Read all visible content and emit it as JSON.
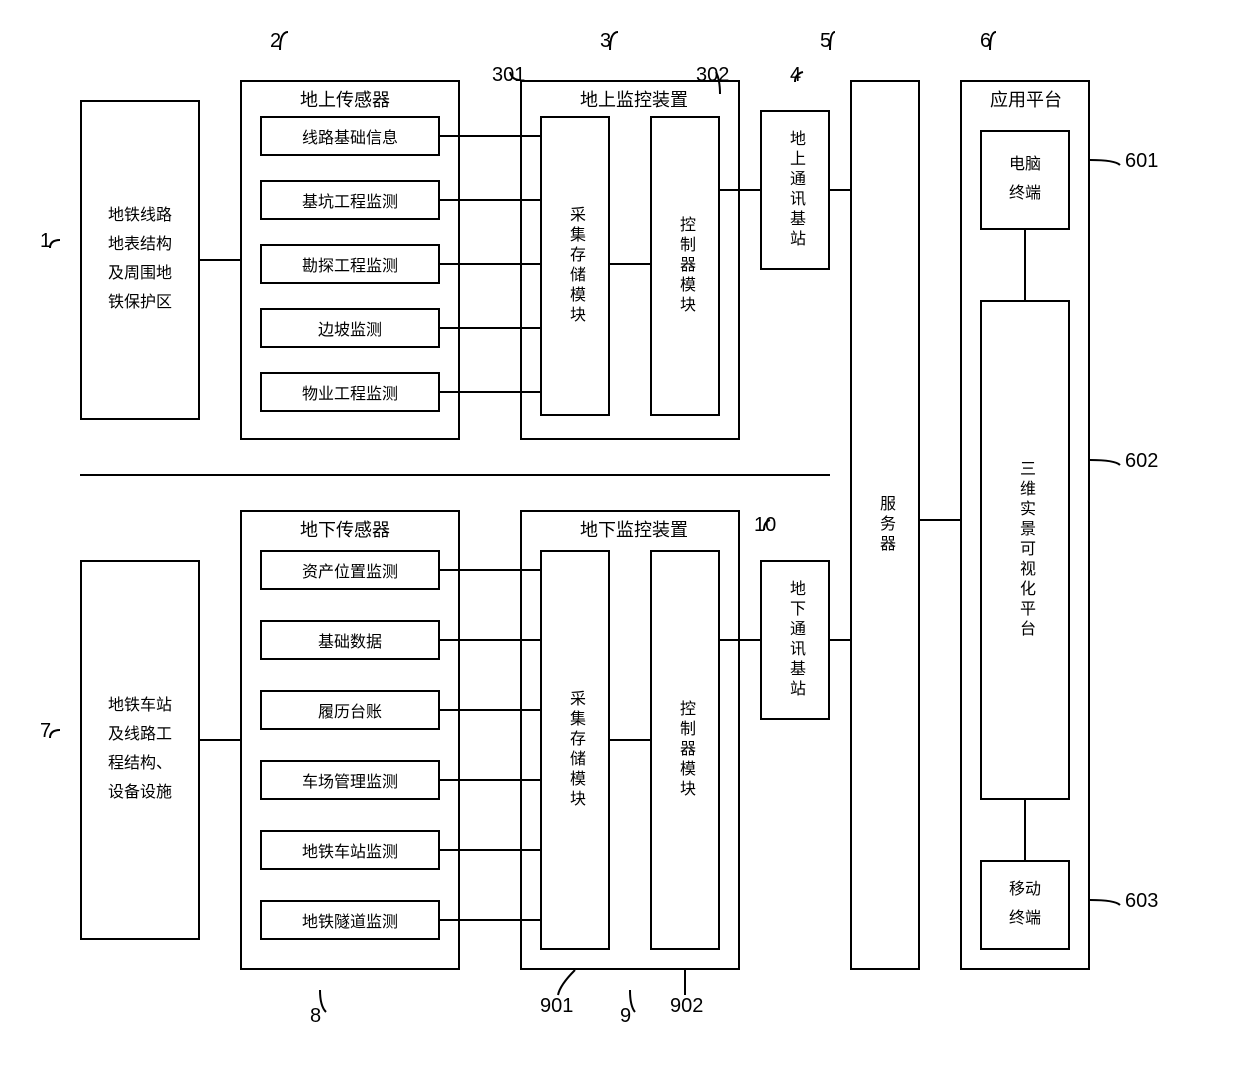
{
  "diagram": {
    "stroke": "#000000",
    "stroke_width": 2,
    "background": "#ffffff",
    "font_family": "SimSun",
    "base_fontsize": 18,
    "small_fontsize": 16,
    "callout_fontsize": 20
  },
  "upper": {
    "source": {
      "label": "地铁线路地表结构及周围地铁保护区",
      "callout": "1"
    },
    "sensors": {
      "title": "地上传感器",
      "callout": "2",
      "items": [
        {
          "label": "线路基础信息"
        },
        {
          "label": "基坑工程监测"
        },
        {
          "label": "勘探工程监测"
        },
        {
          "label": "边坡监测"
        },
        {
          "label": "物业工程监测"
        }
      ]
    },
    "monitor": {
      "title": "地上监控装置",
      "callout": "3",
      "collect": {
        "label": "采集存储模块",
        "callout": "301"
      },
      "control": {
        "label": "控制器模块",
        "callout": "302"
      }
    },
    "station": {
      "label": "地上通讯基站",
      "callout": "4"
    }
  },
  "lower": {
    "source": {
      "label": "地铁车站及线路工程结构、设备设施",
      "callout": "7"
    },
    "sensors": {
      "title": "地下传感器",
      "callout": "8",
      "items": [
        {
          "label": "资产位置监测"
        },
        {
          "label": "基础数据"
        },
        {
          "label": "履历台账"
        },
        {
          "label": "车场管理监测"
        },
        {
          "label": "地铁车站监测"
        },
        {
          "label": "地铁隧道监测"
        }
      ]
    },
    "monitor": {
      "title": "地下监控装置",
      "callout": "9",
      "collect": {
        "label": "采集存储模块",
        "callout": "901"
      },
      "control": {
        "label": "控制器模块",
        "callout": "902"
      }
    },
    "station": {
      "label": "地下通讯基站",
      "callout": "10"
    }
  },
  "server": {
    "label": "服务器",
    "callout": "5"
  },
  "platform": {
    "title": "应用平台",
    "callout": "6",
    "pc": {
      "label": "电脑终端",
      "callout": "601"
    },
    "viz": {
      "label": "三维实景可视化平台",
      "callout": "602"
    },
    "mobile": {
      "label": "移动终端",
      "callout": "603"
    }
  }
}
